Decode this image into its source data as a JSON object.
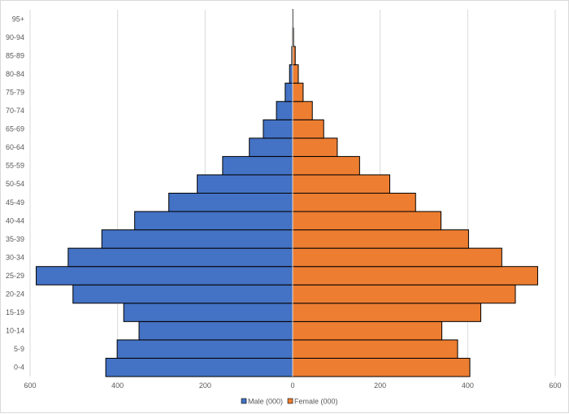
{
  "chart_data": {
    "type": "bar",
    "orientation": "horizontal",
    "subtype": "population-pyramid",
    "title": "",
    "xlabel": "",
    "ylabel": "",
    "categories": [
      "0-4",
      "5-9",
      "10-14",
      "15-19",
      "20-24",
      "25-29",
      "30-34",
      "35-39",
      "40-44",
      "45-49",
      "50-54",
      "55-59",
      "60-64",
      "65-69",
      "70-74",
      "75-79",
      "80-84",
      "85-89",
      "90-94",
      "95+"
    ],
    "series": [
      {
        "name": "Male (000)",
        "color": "#4472C4",
        "side": "left",
        "values": [
          427,
          401,
          351,
          386,
          502,
          586,
          513,
          436,
          361,
          283,
          218,
          160,
          99,
          67,
          37,
          17,
          7,
          2,
          0.5,
          0.2
        ]
      },
      {
        "name": "Female (000)",
        "color": "#ED7D31",
        "side": "right",
        "values": [
          405,
          377,
          341,
          430,
          509,
          560,
          478,
          402,
          339,
          281,
          222,
          153,
          102,
          71,
          45,
          24,
          13,
          6,
          2,
          1
        ]
      }
    ],
    "xlim": [
      -600,
      600
    ],
    "xticks": [
      -600,
      -400,
      -200,
      0,
      200,
      400,
      600
    ],
    "xtick_labels": [
      "600",
      "400",
      "200",
      "0",
      "200",
      "400",
      "600"
    ],
    "grid": true,
    "legend_position": "bottom"
  }
}
